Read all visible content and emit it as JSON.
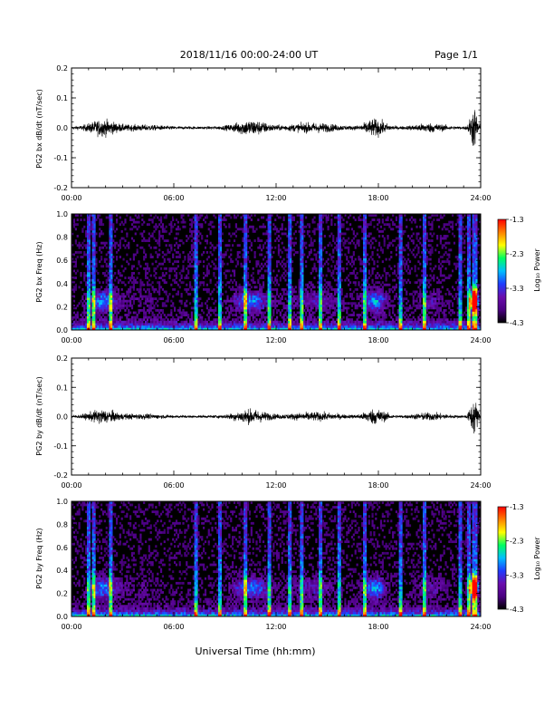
{
  "header": {
    "title": "2018/11/16  00:00-24:00 UT",
    "page": "Page 1/1"
  },
  "footer": {
    "xlabel": "Universal Time (hh:mm)"
  },
  "colorbar": {
    "label": "Log₁₀ Power",
    "ticks": [
      "-1.3",
      "-2.3",
      "-3.3",
      "-4.3"
    ],
    "range": [
      -4.3,
      -1.3
    ],
    "colors": [
      "#000000",
      "#4b0082",
      "#6a0dad",
      "#1e3cff",
      "#00bfff",
      "#00ff60",
      "#ffff00",
      "#ff8000",
      "#ff0000"
    ]
  },
  "chart_data": [
    {
      "type": "line",
      "ylabel": "PG2 bx dB/dt (nT/sec)",
      "ylim": [
        -0.2,
        0.2
      ],
      "yticks": [
        "0.2",
        "0.1",
        "0.0",
        "-0.1",
        "-0.2"
      ],
      "xticks": [
        "00:00",
        "06:00",
        "12:00",
        "18:00",
        "24:00"
      ],
      "xlim_hours": [
        0,
        24
      ],
      "series_color": "#000000"
    },
    {
      "type": "heatmap",
      "ylabel": "PG2 bx Freq (Hz)",
      "ylim": [
        0,
        1.0
      ],
      "yticks": [
        "1.0",
        "0.8",
        "0.6",
        "0.4",
        "0.2",
        "0.0"
      ],
      "xticks": [
        "00:00",
        "06:00",
        "12:00",
        "18:00",
        "24:00"
      ],
      "xlim_hours": [
        0,
        24
      ]
    },
    {
      "type": "line",
      "ylabel": "PG2 by dB/dt (nT/sec)",
      "ylim": [
        -0.2,
        0.2
      ],
      "yticks": [
        "0.2",
        "0.1",
        "0.0",
        "-0.1",
        "-0.2"
      ],
      "xticks": [
        "00:00",
        "06:00",
        "12:00",
        "18:00",
        "24:00"
      ],
      "xlim_hours": [
        0,
        24
      ],
      "series_color": "#000000"
    },
    {
      "type": "heatmap",
      "ylabel": "PG2 by Freq (Hz)",
      "ylim": [
        0,
        1.0
      ],
      "yticks": [
        "1.0",
        "0.8",
        "0.6",
        "0.4",
        "0.2",
        "0.0"
      ],
      "xticks": [
        "00:00",
        "06:00",
        "12:00",
        "18:00",
        "24:00"
      ],
      "xlim_hours": [
        0,
        24
      ]
    }
  ]
}
